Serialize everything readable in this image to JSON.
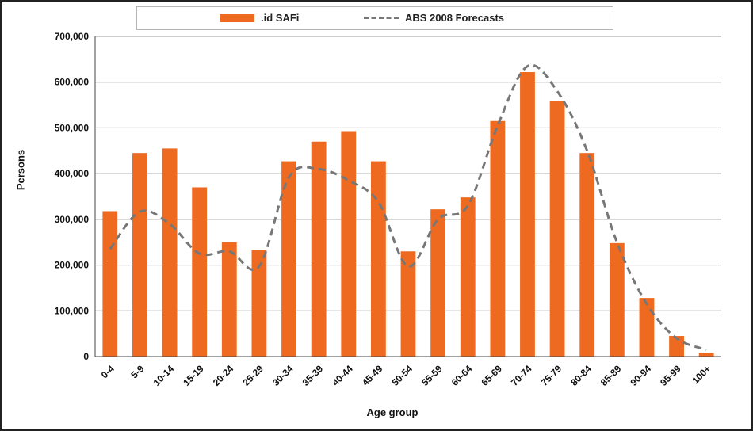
{
  "chart_data": {
    "type": "bar",
    "title": "",
    "xlabel": "Age group",
    "ylabel": "Persons",
    "ylim": [
      0,
      700000
    ],
    "yticks": [
      "0",
      "100,000",
      "200,000",
      "300,000",
      "400,000",
      "500,000",
      "600,000",
      "700,000"
    ],
    "ytick_values": [
      0,
      100000,
      200000,
      300000,
      400000,
      500000,
      600000,
      700000
    ],
    "grid": true,
    "legend_position": "top",
    "categories": [
      "0-4",
      "5-9",
      "10-14",
      "15-19",
      "20-24",
      "25-29",
      "30-34",
      "35-39",
      "40-44",
      "45-49",
      "50-54",
      "55-59",
      "60-64",
      "65-69",
      "70-74",
      "75-79",
      "80-84",
      "85-89",
      "90-94",
      "95-99",
      "100+"
    ],
    "series": [
      {
        "name": ".id SAFi",
        "type": "bar",
        "color": "#EE6A20",
        "values": [
          318000,
          445000,
          455000,
          370000,
          250000,
          233000,
          427000,
          470000,
          493000,
          427000,
          230000,
          322000,
          348000,
          515000,
          622000,
          558000,
          445000,
          248000,
          128000,
          45000,
          8000
        ]
      },
      {
        "name": "ABS 2008 Forecasts",
        "type": "line",
        "style": "dashed",
        "color": "#777777",
        "values": [
          235000,
          317000,
          290000,
          225000,
          230000,
          197000,
          392000,
          410000,
          385000,
          338000,
          197000,
          300000,
          330000,
          505000,
          635000,
          580000,
          450000,
          250000,
          115000,
          40000,
          15000
        ]
      }
    ]
  }
}
